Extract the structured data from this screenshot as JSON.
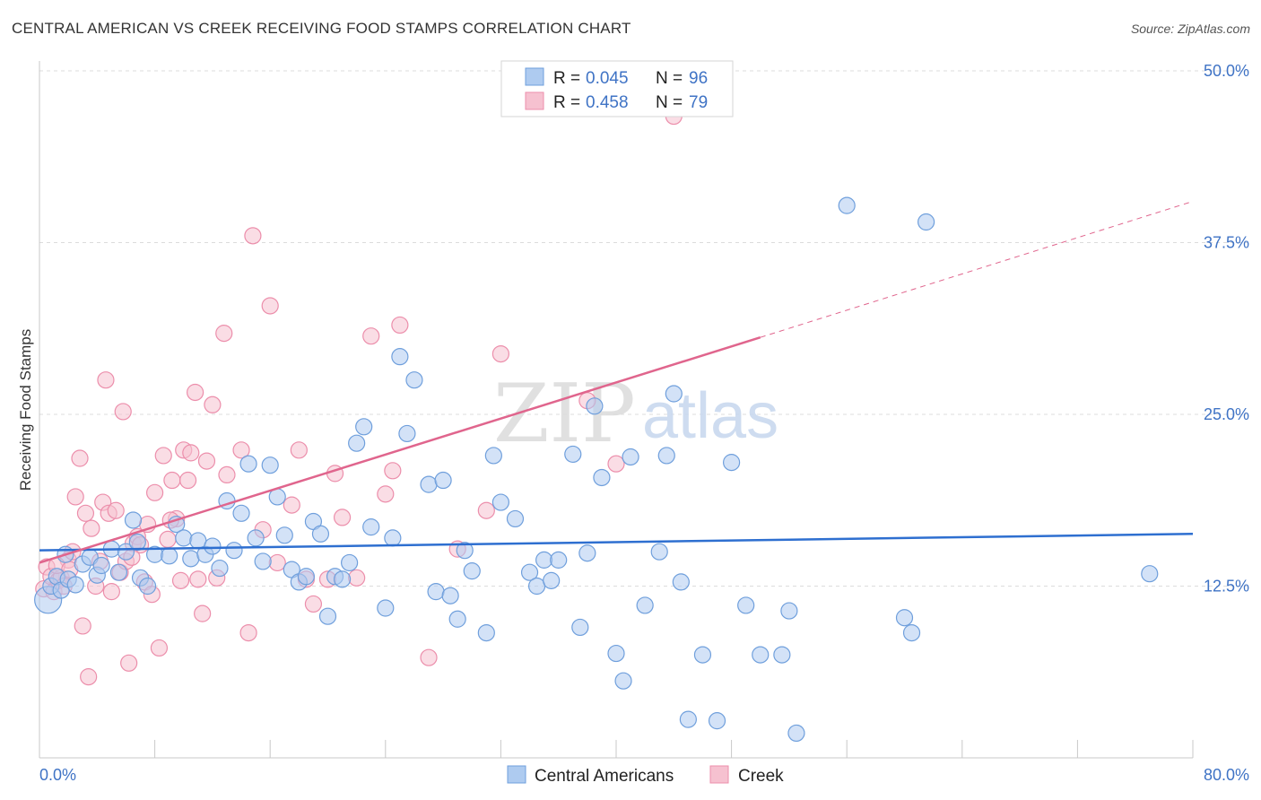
{
  "header": {
    "title": "CENTRAL AMERICAN VS CREEK RECEIVING FOOD STAMPS CORRELATION CHART",
    "source": "Source: ZipAtlas.com"
  },
  "legend": {
    "r_label": "R =",
    "n_label": "N =",
    "rows": [
      {
        "r": "0.045",
        "n": "96"
      },
      {
        "r": "0.458",
        "n": "79"
      }
    ]
  },
  "watermark": {
    "zip": "ZIP",
    "atlas": "atlas"
  },
  "bottom_legend": [
    "Central Americans",
    "Creek"
  ],
  "colors": {
    "blue_fill": "#aecbf0",
    "blue_stroke": "#6f9fdc",
    "blue_line": "#2e6fd0",
    "pink_fill": "#f6c1d0",
    "pink_stroke": "#ec8eab",
    "pink_line": "#e0658d",
    "axis_text": "#3f73c5"
  },
  "chart_data": {
    "type": "scatter",
    "title": "CENTRAL AMERICAN VS CREEK RECEIVING FOOD STAMPS CORRELATION CHART",
    "xlabel": "",
    "ylabel": "Receiving Food Stamps",
    "xlim": [
      0,
      80
    ],
    "ylim": [
      0,
      50
    ],
    "x_tick_labels": [
      "0.0%",
      "80.0%"
    ],
    "y_tick_labels": [
      "12.5%",
      "25.0%",
      "37.5%",
      "50.0%"
    ],
    "y_ticks": [
      12.5,
      25.0,
      37.5,
      50.0
    ],
    "grid": "horizontal dashed",
    "legend_position": "top-center",
    "series": [
      {
        "name": "Central Americans",
        "R": 0.045,
        "N": 96,
        "trend": {
          "x": [
            0,
            80
          ],
          "y": [
            15.1,
            16.3
          ]
        },
        "points": [
          [
            0.6,
            11.5
          ],
          [
            0.8,
            12.5
          ],
          [
            1.2,
            13.2
          ],
          [
            1.5,
            12.2
          ],
          [
            1.8,
            14.8
          ],
          [
            2.0,
            13.0
          ],
          [
            2.5,
            12.6
          ],
          [
            3.0,
            14.1
          ],
          [
            3.5,
            14.6
          ],
          [
            4.0,
            13.3
          ],
          [
            4.3,
            14.0
          ],
          [
            5.0,
            15.2
          ],
          [
            5.5,
            13.5
          ],
          [
            6.0,
            15.0
          ],
          [
            6.5,
            17.3
          ],
          [
            7.0,
            13.1
          ],
          [
            7.5,
            12.5
          ],
          [
            8.0,
            14.8
          ],
          [
            9.0,
            14.7
          ],
          [
            9.5,
            17.0
          ],
          [
            10.0,
            16.0
          ],
          [
            10.5,
            14.5
          ],
          [
            11.0,
            15.8
          ],
          [
            11.5,
            14.8
          ],
          [
            12.0,
            15.4
          ],
          [
            12.5,
            13.8
          ],
          [
            13.0,
            18.7
          ],
          [
            13.5,
            15.1
          ],
          [
            14.0,
            17.8
          ],
          [
            14.5,
            21.4
          ],
          [
            15.0,
            16.0
          ],
          [
            15.5,
            14.3
          ],
          [
            16.0,
            21.3
          ],
          [
            16.5,
            19.0
          ],
          [
            17.0,
            16.2
          ],
          [
            17.5,
            13.7
          ],
          [
            18.0,
            12.8
          ],
          [
            18.5,
            13.2
          ],
          [
            19.0,
            17.2
          ],
          [
            19.5,
            16.3
          ],
          [
            20.0,
            10.3
          ],
          [
            20.5,
            13.2
          ],
          [
            21.0,
            13.0
          ],
          [
            21.5,
            14.2
          ],
          [
            22.0,
            22.9
          ],
          [
            22.5,
            24.1
          ],
          [
            23.0,
            16.8
          ],
          [
            24.0,
            10.9
          ],
          [
            24.5,
            16.0
          ],
          [
            25.0,
            29.2
          ],
          [
            25.5,
            23.6
          ],
          [
            26.0,
            27.5
          ],
          [
            27.0,
            19.9
          ],
          [
            27.5,
            12.1
          ],
          [
            28.0,
            20.2
          ],
          [
            28.5,
            11.8
          ],
          [
            29.0,
            10.1
          ],
          [
            29.5,
            15.1
          ],
          [
            30.0,
            13.6
          ],
          [
            31.0,
            9.1
          ],
          [
            31.5,
            22.0
          ],
          [
            32.0,
            18.6
          ],
          [
            33.0,
            17.4
          ],
          [
            34.0,
            13.5
          ],
          [
            34.5,
            12.5
          ],
          [
            35.0,
            14.4
          ],
          [
            35.5,
            12.9
          ],
          [
            36.0,
            14.4
          ],
          [
            37.0,
            22.1
          ],
          [
            37.5,
            9.5
          ],
          [
            38.0,
            14.9
          ],
          [
            38.5,
            25.6
          ],
          [
            39.0,
            20.4
          ],
          [
            40.0,
            7.6
          ],
          [
            40.5,
            5.6
          ],
          [
            41.0,
            21.9
          ],
          [
            42.0,
            11.1
          ],
          [
            43.0,
            15.0
          ],
          [
            43.5,
            22.0
          ],
          [
            44.0,
            26.5
          ],
          [
            44.5,
            12.8
          ],
          [
            45.0,
            2.8
          ],
          [
            46.0,
            7.5
          ],
          [
            47.0,
            2.7
          ],
          [
            48.0,
            21.5
          ],
          [
            49.0,
            11.1
          ],
          [
            50.0,
            7.5
          ],
          [
            51.5,
            7.5
          ],
          [
            52.0,
            10.7
          ],
          [
            52.5,
            1.8
          ],
          [
            56.0,
            40.2
          ],
          [
            60.0,
            10.2
          ],
          [
            60.5,
            9.1
          ],
          [
            61.5,
            39.0
          ],
          [
            77.0,
            13.4
          ],
          [
            6.8,
            15.7
          ]
        ]
      },
      {
        "name": "Creek",
        "R": 0.458,
        "N": 79,
        "trend": {
          "x": [
            0,
            50
          ],
          "y": [
            14.2,
            30.6
          ]
        },
        "trend_dashed": {
          "x": [
            50,
            80
          ],
          "y": [
            30.6,
            40.5
          ]
        },
        "points": [
          [
            0.3,
            12.3
          ],
          [
            0.5,
            13.9
          ],
          [
            0.8,
            13.2
          ],
          [
            1.0,
            12.1
          ],
          [
            1.3,
            12.9
          ],
          [
            1.5,
            13.1
          ],
          [
            1.7,
            12.5
          ],
          [
            2.0,
            14.4
          ],
          [
            2.3,
            15.0
          ],
          [
            2.5,
            19.0
          ],
          [
            2.8,
            21.8
          ],
          [
            3.0,
            9.6
          ],
          [
            3.2,
            17.8
          ],
          [
            3.4,
            5.9
          ],
          [
            3.6,
            16.7
          ],
          [
            3.9,
            12.5
          ],
          [
            4.2,
            14.3
          ],
          [
            4.4,
            18.6
          ],
          [
            4.6,
            27.5
          ],
          [
            4.8,
            17.8
          ],
          [
            5.0,
            12.1
          ],
          [
            5.3,
            18.0
          ],
          [
            5.6,
            13.5
          ],
          [
            5.8,
            25.2
          ],
          [
            6.0,
            14.3
          ],
          [
            6.2,
            6.9
          ],
          [
            6.5,
            15.6
          ],
          [
            6.8,
            16.1
          ],
          [
            7.0,
            15.5
          ],
          [
            7.3,
            12.8
          ],
          [
            7.5,
            17.0
          ],
          [
            7.8,
            11.9
          ],
          [
            8.0,
            19.3
          ],
          [
            8.3,
            8.0
          ],
          [
            8.6,
            22.0
          ],
          [
            8.9,
            15.9
          ],
          [
            9.2,
            20.2
          ],
          [
            9.5,
            17.4
          ],
          [
            9.8,
            12.9
          ],
          [
            10.0,
            22.4
          ],
          [
            10.3,
            20.2
          ],
          [
            10.5,
            22.2
          ],
          [
            10.8,
            26.6
          ],
          [
            11.0,
            13.0
          ],
          [
            11.3,
            10.5
          ],
          [
            11.6,
            21.6
          ],
          [
            12.0,
            25.7
          ],
          [
            12.3,
            13.1
          ],
          [
            12.8,
            30.9
          ],
          [
            13.0,
            20.6
          ],
          [
            14.0,
            22.4
          ],
          [
            14.5,
            9.1
          ],
          [
            14.8,
            38.0
          ],
          [
            15.5,
            16.6
          ],
          [
            16.0,
            32.9
          ],
          [
            16.5,
            14.2
          ],
          [
            17.5,
            18.4
          ],
          [
            18.0,
            22.4
          ],
          [
            18.5,
            13.0
          ],
          [
            19.0,
            11.2
          ],
          [
            20.0,
            13.0
          ],
          [
            20.5,
            20.7
          ],
          [
            21.0,
            17.5
          ],
          [
            22.0,
            13.1
          ],
          [
            23.0,
            30.7
          ],
          [
            24.0,
            19.2
          ],
          [
            24.5,
            20.9
          ],
          [
            25.0,
            31.5
          ],
          [
            27.0,
            7.3
          ],
          [
            29.0,
            15.2
          ],
          [
            31.0,
            18.0
          ],
          [
            32.0,
            29.4
          ],
          [
            38.0,
            26.0
          ],
          [
            40.0,
            21.4
          ],
          [
            44.0,
            46.7
          ],
          [
            1.2,
            14.0
          ],
          [
            2.1,
            13.7
          ],
          [
            6.4,
            14.6
          ],
          [
            9.1,
            17.3
          ]
        ]
      }
    ]
  }
}
